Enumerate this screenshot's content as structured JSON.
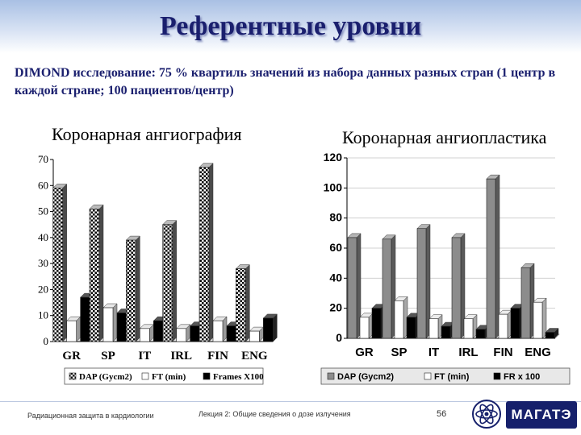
{
  "title": "Референтные уровни",
  "subtitle": "DIMOND исследование: 75 % квартиль значений из набора данных разных стран (1 центр в каждой стране; 100 пациентов/центр)",
  "footer": {
    "left": "Радиационная защита в кардиологии",
    "center": "Лекция 2: Общие сведения о дозе излучения",
    "page": "56",
    "brand": "МАГАТЭ"
  },
  "colors": {
    "title": "#1a1f6e",
    "brand_bg": "#16206b",
    "band": "#a9c0e4"
  },
  "icons": {
    "logo": "iaea-atom-icon"
  },
  "chart_data": [
    {
      "type": "bar",
      "title": "Коронарная ангиография",
      "categories": [
        "GR",
        "SP",
        "IT",
        "IRL",
        "FIN",
        "ENG"
      ],
      "ylim": [
        0,
        70
      ],
      "yticks": [
        "0",
        "10",
        "20",
        "30",
        "40",
        "50",
        "60",
        "70"
      ],
      "series": [
        {
          "name": "DAP (Gycm2)",
          "values": [
            59,
            51,
            39,
            45,
            67,
            28
          ]
        },
        {
          "name": "FT (min)",
          "values": [
            8,
            13,
            5,
            5,
            8,
            4
          ]
        },
        {
          "name": "Frames X100",
          "values": [
            17,
            11,
            8,
            6,
            6,
            9
          ]
        }
      ],
      "grid": false,
      "legend": "bottom"
    },
    {
      "type": "bar",
      "title": "Коронарная ангиопластика",
      "categories": [
        "GR",
        "SP",
        "IT",
        "IRL",
        "FIN",
        "ENG"
      ],
      "ylim": [
        0,
        120
      ],
      "yticks": [
        "0",
        "20",
        "40",
        "60",
        "80",
        "100",
        "120"
      ],
      "series": [
        {
          "name": "DAP (Gycm2)",
          "values": [
            67,
            66,
            73,
            67,
            106,
            47
          ]
        },
        {
          "name": "FT (min)",
          "values": [
            14,
            25,
            13,
            13,
            16,
            24
          ]
        },
        {
          "name": "FR x 100",
          "values": [
            20,
            14,
            8,
            6,
            20,
            4
          ]
        }
      ],
      "grid": true,
      "legend": "bottom"
    }
  ]
}
